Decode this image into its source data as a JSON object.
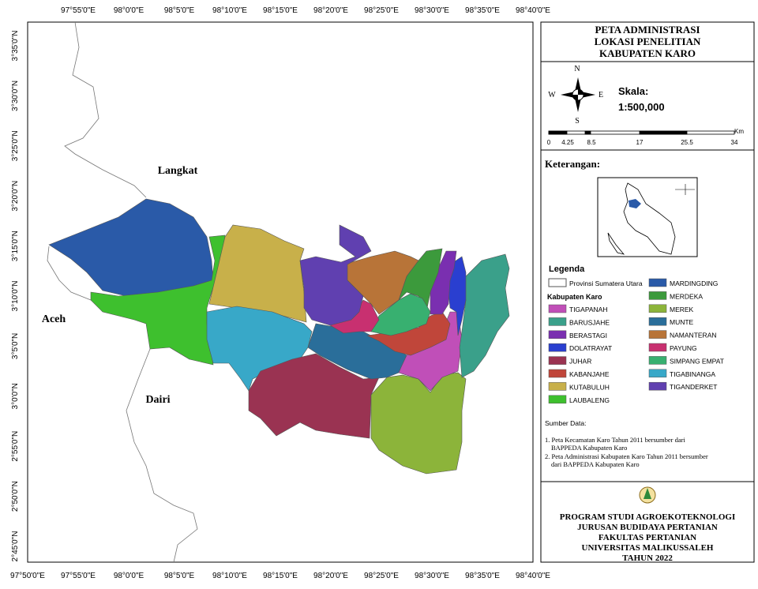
{
  "map": {
    "top_ticks": [
      "97°55'0\"E",
      "98°0'0\"E",
      "98°5'0\"E",
      "98°10'0\"E",
      "98°15'0\"E",
      "98°20'0\"E",
      "98°25'0\"E",
      "98°30'0\"E",
      "98°35'0\"E",
      "98°40'0\"E"
    ],
    "bottom_ticks": [
      "97°50'0\"E",
      "97°55'0\"E",
      "98°0'0\"E",
      "98°5'0\"E",
      "98°10'0\"E",
      "98°15'0\"E",
      "98°20'0\"E",
      "98°25'0\"E",
      "98°30'0\"E",
      "98°35'0\"E",
      "98°40'0\"E"
    ],
    "left_ticks": [
      "3°35'0\"N",
      "3°30'0\"N",
      "3°25'0\"N",
      "3°20'0\"N",
      "3°15'0\"N",
      "3°10'0\"N",
      "3°5'0\"N",
      "3°0'0\"N",
      "2°55'0\"N",
      "2°50'0\"N",
      "2°45'0\"N"
    ],
    "regions": [
      "Langkat",
      "Aceh",
      "Dairi"
    ]
  },
  "title": [
    "PETA ADMINISTRASI",
    "LOKASI PENELITIAN",
    "KABUPATEN KARO"
  ],
  "compass": {
    "n": "N",
    "w": "W",
    "e": "E",
    "s": "S"
  },
  "scale": {
    "label": "Skala:",
    "ratio": "1:500,000",
    "unit": "Km",
    "ticks": [
      "0",
      "4.25",
      "8.5",
      "17",
      "25.5",
      "34"
    ]
  },
  "keterangan": "Keterangan:",
  "legend": {
    "title": "Legenda",
    "province": "Provinsi Sumatera Utara",
    "group": "Kabupaten Karo",
    "districts": [
      {
        "name": "TIGAPANAH",
        "color": "#c04fb8"
      },
      {
        "name": "BARUSJAHE",
        "color": "#3aa08a"
      },
      {
        "name": "BERASTAGI",
        "color": "#7a2fb0"
      },
      {
        "name": "DOLATRAYAT",
        "color": "#2a3fd0"
      },
      {
        "name": "JUHAR",
        "color": "#9a3352"
      },
      {
        "name": "KABANJAHE",
        "color": "#c0463a"
      },
      {
        "name": "KUTABULUH",
        "color": "#c8b04a"
      },
      {
        "name": "LAUBALENG",
        "color": "#3ec02e"
      },
      {
        "name": "MARDINGDING",
        "color": "#2a5aa8"
      },
      {
        "name": "MERDEKA",
        "color": "#3c9a3c"
      },
      {
        "name": "MEREK",
        "color": "#8cb43a"
      },
      {
        "name": "MUNTE",
        "color": "#2a6e9a"
      },
      {
        "name": "NAMANTERAN",
        "color": "#b87438"
      },
      {
        "name": "PAYUNG",
        "color": "#c83070"
      },
      {
        "name": "SIMPANG EMPAT",
        "color": "#38b070"
      },
      {
        "name": "TIGABINANGA",
        "color": "#38a8c8"
      },
      {
        "name": "TIGANDERKET",
        "color": "#6040b0"
      }
    ]
  },
  "source": {
    "title": "Sumber Data:",
    "lines": [
      "1. Peta Kecamatan Karo Tahun 2011 bersumber dari",
      "BAPPEDA Kabupaten Karo",
      "2. Peta Administrasi Kabupaten Karo Tahun 2011 bersumber",
      "dari BAPPEDA Kabupaten Karo"
    ]
  },
  "footer": [
    "PROGRAM STUDI AGROEKOTEKNOLOGI",
    "JURUSAN BUDIDAYA PERTANIAN",
    "FAKULTAS PERTANIAN",
    "UNIVERSITAS MALIKUSSALEH",
    "TAHUN 2022"
  ]
}
